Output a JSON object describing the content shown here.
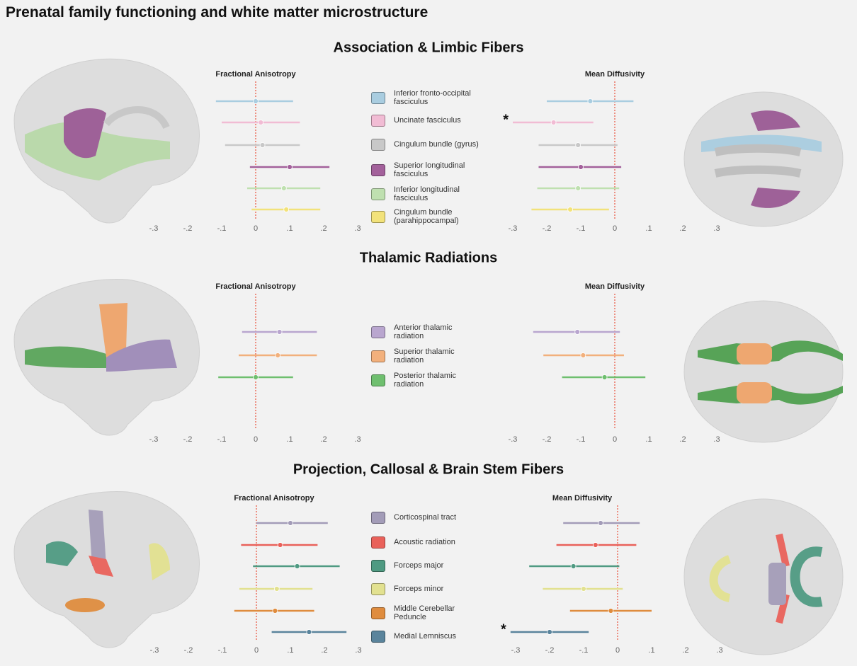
{
  "title": "Prenatal family functioning and white matter microstructure",
  "chart_data": [
    {
      "type": "forest",
      "title": "Association & Limbic Fibers",
      "categories": [
        "Inferior fronto-occipital fasciculus",
        "Uncinate fasciculus",
        "Cingulum bundle (gyrus)",
        "Superior longitudinal fasciculus",
        "Inferior longitudinal fasciculus",
        "Cingulum bundle (parahippocampal)"
      ],
      "colors": [
        "#a9cde0",
        "#f1bcd4",
        "#c8c8c8",
        "#a3619b",
        "#bfe0b0",
        "#f2e27a"
      ],
      "xlim": [
        -0.35,
        0.35
      ],
      "xticks": [
        {
          "value": -0.3,
          "label": "-.3"
        },
        {
          "value": -0.2,
          "label": "-.2"
        },
        {
          "value": -0.1,
          "label": "-.1"
        },
        0,
        {
          "value": 0.1,
          "label": ".1"
        },
        {
          "value": 0.2,
          "label": ".2"
        },
        {
          "value": 0.3,
          "label": ".3"
        }
      ],
      "panels": [
        {
          "title": "Fractional Anisotropy",
          "values": [
            0,
            0.015,
            0.02,
            0.1,
            0.083,
            0.09
          ],
          "lower": [
            -0.117,
            -0.1,
            -0.09,
            -0.017,
            -0.025,
            -0.012
          ],
          "upper": [
            0.11,
            0.13,
            0.13,
            0.217,
            0.19,
            0.19
          ]
        },
        {
          "title": "Mean Diffusivity",
          "values": [
            -0.072,
            -0.18,
            -0.108,
            -0.1,
            -0.108,
            -0.131
          ],
          "lower": [
            -0.2,
            -0.3,
            -0.224,
            -0.224,
            -0.228,
            -0.245
          ],
          "upper": [
            0.055,
            -0.063,
            0.008,
            0.019,
            0.013,
            -0.017
          ],
          "markers": [
            null,
            "*",
            null,
            null,
            null,
            null
          ]
        }
      ]
    },
    {
      "type": "forest",
      "title": "Thalamic Radiations",
      "categories": [
        "Anterior thalamic radiation",
        "Superior thalamic radiation",
        "Posterior thalamic radiation"
      ],
      "colors": [
        "#b9a6cf",
        "#f2b07c",
        "#6fbf6f"
      ],
      "xlim": [
        -0.35,
        0.35
      ],
      "xticks": [
        {
          "value": -0.3,
          "label": "-.3"
        },
        {
          "value": -0.2,
          "label": "-.2"
        },
        {
          "value": -0.1,
          "label": "-.1"
        },
        0,
        {
          "value": 0.1,
          "label": ".1"
        },
        {
          "value": 0.2,
          "label": ".2"
        },
        {
          "value": 0.3,
          "label": ".3"
        }
      ],
      "panels": [
        {
          "title": "Fractional Anisotropy",
          "values": [
            0.07,
            0.065,
            0
          ],
          "lower": [
            -0.04,
            -0.05,
            -0.11
          ],
          "upper": [
            0.18,
            0.18,
            0.11
          ]
        },
        {
          "title": "Mean Diffusivity",
          "values": [
            -0.11,
            -0.093,
            -0.03
          ],
          "lower": [
            -0.24,
            -0.21,
            -0.155
          ],
          "upper": [
            0.015,
            0.027,
            0.09
          ]
        }
      ]
    },
    {
      "type": "forest",
      "title": "Projection, Callosal & Brain Stem Fibers",
      "categories": [
        "Corticospinal tract",
        "Acoustic radiation",
        "Forceps major",
        "Forceps minor",
        "Middle Cerebellar Peduncle",
        "Medial Lemniscus"
      ],
      "colors": [
        "#a39cb8",
        "#e9615a",
        "#4f9a82",
        "#e2e190",
        "#df8c3e",
        "#5a849c"
      ],
      "xlim": [
        -0.35,
        0.35
      ],
      "xticks": [
        {
          "value": -0.3,
          "label": "-.3"
        },
        {
          "value": -0.2,
          "label": "-.2"
        },
        {
          "value": -0.1,
          "label": "-.1"
        },
        0,
        {
          "value": 0.1,
          "label": ".1"
        },
        {
          "value": 0.2,
          "label": ".2"
        },
        {
          "value": 0.3,
          "label": ".3"
        }
      ],
      "panels": [
        {
          "title": "Fractional Anisotropy",
          "values": [
            0.1,
            0.07,
            0.12,
            0.06,
            0.055,
            0.155
          ],
          "lower": [
            0,
            -0.045,
            -0.01,
            -0.05,
            -0.065,
            0.045
          ],
          "upper": [
            0.21,
            0.18,
            0.245,
            0.165,
            0.17,
            0.265
          ]
        },
        {
          "title": "Mean Diffusivity",
          "values": [
            -0.05,
            -0.065,
            -0.13,
            -0.1,
            -0.02,
            -0.2
          ],
          "lower": [
            -0.16,
            -0.18,
            -0.26,
            -0.22,
            -0.14,
            -0.315
          ],
          "upper": [
            0.065,
            0.055,
            0.005,
            0.015,
            0.1,
            -0.085
          ],
          "markers": [
            null,
            null,
            null,
            null,
            null,
            "*"
          ]
        }
      ]
    }
  ]
}
